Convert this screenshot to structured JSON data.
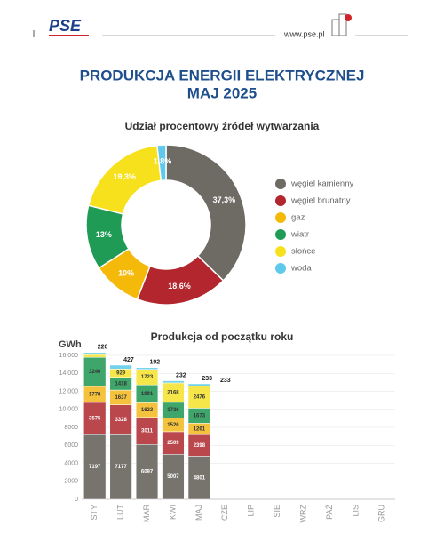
{
  "header": {
    "logo": "PSE",
    "url": "www.pse.pl"
  },
  "title": "PRODUKCJA ENERGII ELEKTRYCZNEJ",
  "subtitle": "MAJ 2025",
  "chart_data": [
    {
      "type": "donut",
      "title": "Udział procentowy źródeł wytwarzania",
      "categories": [
        "węgiel kamienny",
        "węgiel brunatny",
        "gaz",
        "wiatr",
        "słońce",
        "woda"
      ],
      "values": [
        37.3,
        18.6,
        10,
        13,
        19.3,
        1.8
      ],
      "value_labels": [
        "37,3%",
        "18,6%",
        "10%",
        "13%",
        "19,3%",
        "1,8%"
      ],
      "colors": [
        "#6e6a64",
        "#b3262d",
        "#f5b90a",
        "#1f9b55",
        "#f7e11c",
        "#5ec9ea"
      ]
    },
    {
      "type": "bar",
      "stacked": true,
      "title": "Produkcja od początku roku",
      "ylabel": "GWh",
      "categories": [
        "STY",
        "LUT",
        "MAR",
        "KWI",
        "MAJ",
        "CZE",
        "LIP",
        "SIE",
        "WRZ",
        "PAŹ",
        "LIS",
        "GRU"
      ],
      "series": [
        {
          "color": "#77746e",
          "values": [
            7197,
            7177,
            6097,
            5007,
            4801,
            null,
            null,
            null,
            null,
            null,
            null,
            null
          ]
        },
        {
          "color": "#b9474b",
          "values": [
            3575,
            3328,
            3011,
            2509,
            2398,
            null,
            null,
            null,
            null,
            null,
            null,
            null
          ]
        },
        {
          "color": "#f4c23c",
          "values": [
            1778,
            1637,
            1623,
            1526,
            1261,
            null,
            null,
            null,
            null,
            null,
            null,
            null
          ]
        },
        {
          "color": "#3fa66b",
          "values": [
            3240,
            1418,
            1991,
            1736,
            1673,
            null,
            null,
            null,
            null,
            null,
            null,
            null
          ]
        },
        {
          "color": "#f6e64a",
          "values": [
            300,
            929,
            1723,
            2168,
            2476,
            null,
            null,
            null,
            null,
            null,
            null,
            null
          ]
        },
        {
          "color": "#72d1ec",
          "values": [
            220,
            427,
            192,
            232,
            233,
            null,
            null,
            null,
            null,
            null,
            null,
            null
          ]
        }
      ],
      "annotations": [
        "233"
      ],
      "ylim": [
        0,
        16000
      ],
      "yticks": [
        0,
        2000,
        4000,
        6000,
        8000,
        {
          "value": 10000,
          "label": "10,000"
        },
        {
          "value": 12000,
          "label": "12,000"
        },
        {
          "value": 14000,
          "label": "14,000"
        },
        {
          "value": 16000,
          "label": "16,000"
        }
      ]
    }
  ]
}
